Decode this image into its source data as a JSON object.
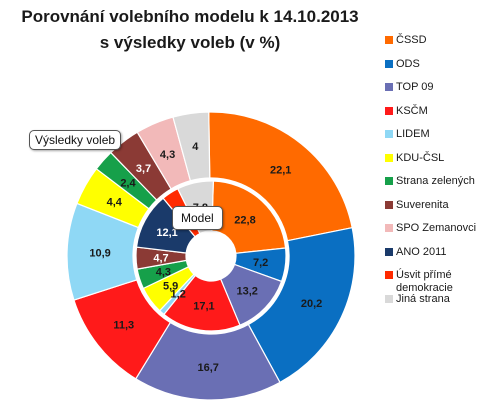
{
  "chart_data": {
    "type": "donut",
    "title_line1": "Porovnání volebního modelu k 14.10.2013",
    "title_line2": "s výsledky voleb (v %)",
    "outer_ring_label": "Výsledky voleb",
    "inner_ring_label": "Model",
    "categories": [
      {
        "name": "ČSSD",
        "color": "#ff6a00",
        "model": 22.8,
        "result": 22.1
      },
      {
        "name": "ODS",
        "color": "#0a6fc2",
        "model": 7.2,
        "result": 20.2
      },
      {
        "name": "TOP 09",
        "color": "#6a6fb4",
        "model": 13.2,
        "result": 16.7
      },
      {
        "name": "KSČM",
        "color": "#ff1a1a",
        "model": 17.1,
        "result": 11.3
      },
      {
        "name": "LIDEM",
        "color": "#8fd8f5",
        "model": 1.2,
        "result": 10.9
      },
      {
        "name": "KDU-ČSL",
        "color": "#ffff00",
        "model": 5.9,
        "result": 4.4
      },
      {
        "name": "Strana zelených",
        "color": "#16a04a",
        "model": 4.3,
        "result": 2.4
      },
      {
        "name": "Suverenita",
        "color": "#8b3a35",
        "model": 4.7,
        "result": 3.7
      },
      {
        "name": "SPO Zemanovci",
        "color": "#f2b9b9",
        "model": null,
        "result": 4.3
      },
      {
        "name": "ANO 2011",
        "color": "#1a3a6a",
        "model": 12.1,
        "result": null
      },
      {
        "name": "Úsvit přímé demokracie",
        "color": "#ff2a00",
        "model": 3.7,
        "result": null
      },
      {
        "name": "Jiná strana",
        "color": "#d9d9d9",
        "model": 7.8,
        "result": 4.0
      }
    ]
  }
}
